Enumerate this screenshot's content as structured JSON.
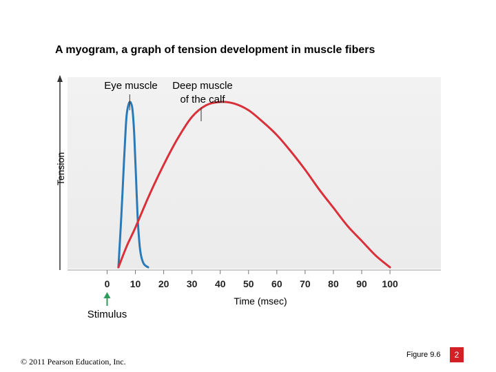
{
  "chart_data": {
    "type": "line",
    "title": "A myogram, a graph of tension development in muscle fibers",
    "xlabel": "Time (msec)",
    "ylabel": "Tension",
    "x_ticks": [
      0,
      10,
      20,
      30,
      40,
      50,
      60,
      70,
      80,
      90,
      100
    ],
    "xlim": [
      -14,
      118
    ],
    "ylim": [
      0,
      1.15
    ],
    "grid": false,
    "stimulus": {
      "label": "Stimulus",
      "x": 0
    },
    "series": [
      {
        "name": "Eye muscle",
        "color": "#2a7ab8",
        "x": [
          4,
          5,
          6,
          6.8,
          7.5,
          8,
          8.5,
          9,
          9.6,
          10.2,
          10.8,
          11.4,
          12,
          13,
          14.5
        ],
        "y": [
          0,
          0.3,
          0.65,
          0.9,
          0.98,
          1.0,
          0.99,
          0.95,
          0.8,
          0.55,
          0.3,
          0.15,
          0.07,
          0.02,
          0
        ]
      },
      {
        "name": "Deep muscle of the calf",
        "color": "#d9303a",
        "x": [
          4,
          7,
          10,
          15,
          20,
          25,
          30,
          35,
          40,
          45,
          50,
          55,
          60,
          65,
          70,
          75,
          80,
          85,
          90,
          95,
          100
        ],
        "y": [
          0,
          0.13,
          0.24,
          0.44,
          0.62,
          0.78,
          0.91,
          0.98,
          1.0,
          0.99,
          0.95,
          0.88,
          0.8,
          0.7,
          0.59,
          0.47,
          0.36,
          0.25,
          0.16,
          0.07,
          0
        ]
      }
    ]
  },
  "labels": {
    "eye_muscle": "Eye muscle",
    "calf_line1": "Deep muscle",
    "calf_line2": "of the calf"
  },
  "footer": {
    "copyright": "© 2011 Pearson Education, Inc.",
    "figure_ref": "Figure 9.6",
    "page_badge": "2"
  },
  "colors": {
    "plot_bg_top": "#f2f2f2",
    "plot_bg_bottom": "#ebebeb",
    "axis": "#333333",
    "stimulus_arrow": "#2f9a5a",
    "badge": "#d32026"
  }
}
